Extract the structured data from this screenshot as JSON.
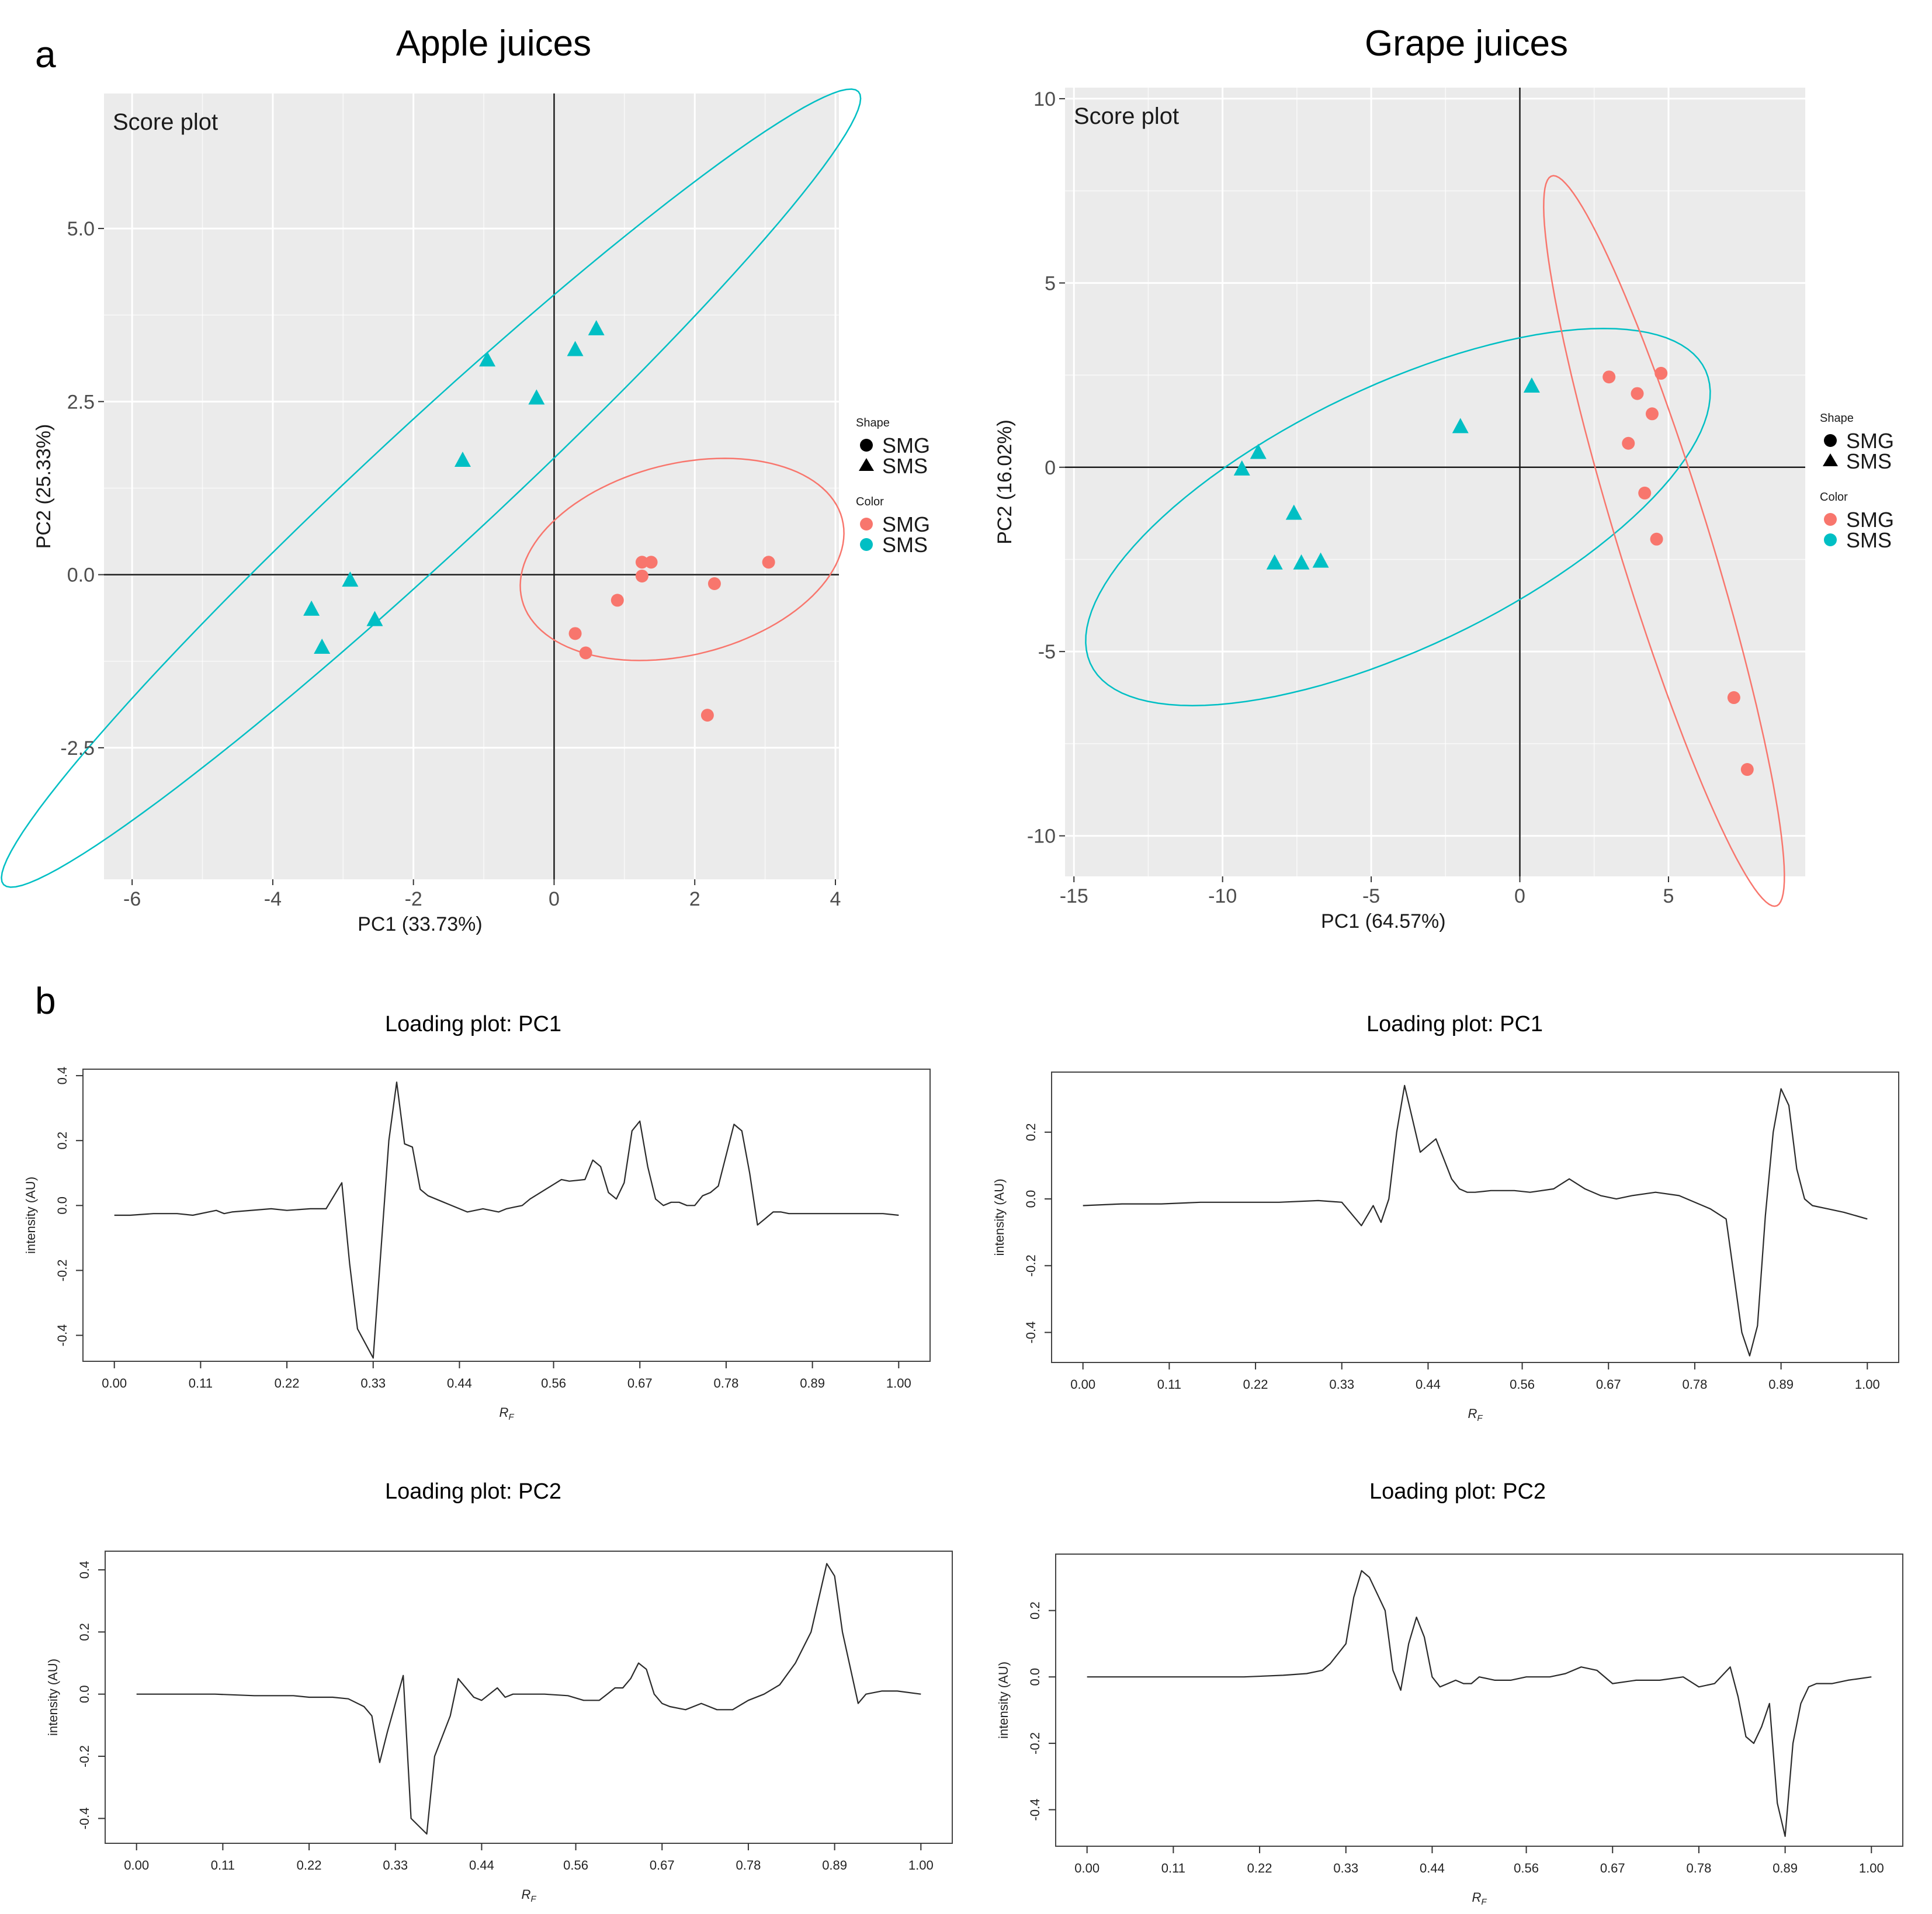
{
  "figure": {
    "panel_a_label": "a",
    "panel_b_label": "b",
    "legend": {
      "shape_title": "Shape",
      "color_title": "Color",
      "groups": [
        "SMG",
        "SMS"
      ],
      "colors": {
        "SMG": "#F8766D",
        "SMS": "#00BFC4"
      }
    }
  },
  "chart_data": [
    {
      "id": "apple-score",
      "type": "scatter",
      "title": "Apple juices",
      "annotation": "Score plot",
      "xlabel": "PC1 (33.73%)",
      "ylabel": "PC2 (25.33%)",
      "xlim": [
        -6.4,
        4.05
      ],
      "ylim": [
        -4.4,
        6.95
      ],
      "xticks": [
        -6,
        -4,
        -2,
        0,
        2,
        4
      ],
      "xtick_labels": [
        "-6",
        "-4",
        "-2",
        "0",
        "2",
        "4"
      ],
      "yticks": [
        -2.5,
        0,
        2.5,
        5
      ],
      "ytick_labels": [
        "-2.5",
        "0.0",
        "2.5",
        "5.0"
      ],
      "series": [
        {
          "name": "SMS",
          "shape": "triangle",
          "color": "#00BFC4",
          "points": [
            [
              0.6,
              3.55
            ],
            [
              0.3,
              3.25
            ],
            [
              -0.95,
              3.1
            ],
            [
              -0.25,
              2.55
            ],
            [
              -1.3,
              1.65
            ],
            [
              -2.9,
              -0.08
            ],
            [
              -3.45,
              -0.5
            ],
            [
              -2.55,
              -0.65
            ],
            [
              -3.3,
              -1.05
            ]
          ]
        },
        {
          "name": "SMG",
          "shape": "circle",
          "color": "#F8766D",
          "points": [
            [
              1.25,
              0.18
            ],
            [
              1.38,
              0.18
            ],
            [
              3.05,
              0.18
            ],
            [
              1.25,
              -0.02
            ],
            [
              2.28,
              -0.13
            ],
            [
              0.9,
              -0.37
            ],
            [
              0.3,
              -0.85
            ],
            [
              0.45,
              -1.13
            ],
            [
              2.18,
              -2.03
            ]
          ]
        }
      ],
      "ellipses": [
        {
          "group": "SMS",
          "center": [
            -1.75,
            1.25
          ],
          "semi_axes": [
            8.35,
            0.9
          ],
          "rotation_deg": 43.3
        },
        {
          "group": "SMG",
          "center": [
            1.82,
            0.22
          ],
          "semi_axes": [
            2.35,
            1.38
          ],
          "rotation_deg": 14.5
        }
      ]
    },
    {
      "id": "grape-score",
      "type": "scatter",
      "title": "Grape juices",
      "annotation": "Score plot",
      "xlabel": "PC1 (64.57%)",
      "ylabel": "PC2 (16.02%)",
      "xlim": [
        -15.3,
        9.6
      ],
      "ylim": [
        -11.1,
        10.3
      ],
      "xticks": [
        -15,
        -10,
        -5,
        0,
        5
      ],
      "xtick_labels": [
        "-15",
        "-10",
        "-5",
        "0",
        "5"
      ],
      "yticks": [
        -10,
        -5,
        0,
        5,
        10
      ],
      "ytick_labels": [
        "-10",
        "-5",
        "0",
        "5",
        "10"
      ],
      "series": [
        {
          "name": "SMS",
          "shape": "triangle",
          "color": "#00BFC4",
          "points": [
            [
              0.4,
              2.2
            ],
            [
              -2.0,
              1.1
            ],
            [
              -8.8,
              0.4
            ],
            [
              -9.35,
              -0.05
            ],
            [
              -7.6,
              -1.25
            ],
            [
              -8.25,
              -2.6
            ],
            [
              -7.35,
              -2.6
            ],
            [
              -6.7,
              -2.55
            ]
          ]
        },
        {
          "name": "SMG",
          "shape": "circle",
          "color": "#F8766D",
          "points": [
            [
              4.75,
              2.55
            ],
            [
              3.0,
              2.45
            ],
            [
              3.95,
              2.0
            ],
            [
              4.45,
              1.45
            ],
            [
              3.65,
              0.65
            ],
            [
              4.2,
              -0.7
            ],
            [
              4.6,
              -1.95
            ],
            [
              7.2,
              -6.25
            ],
            [
              7.65,
              -8.2
            ]
          ]
        }
      ],
      "ellipses": [
        {
          "group": "SMS",
          "center": [
            -4.1,
            -1.35
          ],
          "semi_axes": [
            11.1,
            3.65
          ],
          "rotation_deg": 20
        },
        {
          "group": "SMG",
          "center": [
            4.85,
            -2.0
          ],
          "semi_axes": [
            10.6,
            1.5
          ],
          "rotation_deg": -69
        }
      ]
    },
    {
      "id": "apple-pc1",
      "type": "line",
      "title": "Loading plot: PC1",
      "xlabel": "RF",
      "ylabel": "intensity (AU)",
      "xlim": [
        -0.04,
        1.04
      ],
      "ylim": [
        -0.48,
        0.42
      ],
      "xticks": [
        0.0,
        0.11,
        0.22,
        0.33,
        0.44,
        0.56,
        0.67,
        0.78,
        0.89,
        1.0
      ],
      "xtick_labels": [
        "0.00",
        "0.11",
        "0.22",
        "0.33",
        "0.44",
        "0.56",
        "0.67",
        "0.78",
        "0.89",
        "1.00"
      ],
      "yticks": [
        -0.4,
        -0.2,
        0.0,
        0.2,
        0.4
      ],
      "ytick_labels": [
        "-0.4",
        "-0.2",
        "0.0",
        "0.2",
        "0.4"
      ],
      "x": [
        0.0,
        0.02,
        0.05,
        0.08,
        0.1,
        0.13,
        0.14,
        0.15,
        0.2,
        0.22,
        0.25,
        0.27,
        0.29,
        0.3,
        0.31,
        0.33,
        0.35,
        0.36,
        0.37,
        0.38,
        0.39,
        0.4,
        0.42,
        0.45,
        0.47,
        0.49,
        0.5,
        0.51,
        0.52,
        0.53,
        0.55,
        0.57,
        0.58,
        0.6,
        0.61,
        0.62,
        0.63,
        0.64,
        0.65,
        0.66,
        0.67,
        0.68,
        0.69,
        0.7,
        0.71,
        0.72,
        0.73,
        0.74,
        0.75,
        0.76,
        0.77,
        0.79,
        0.8,
        0.81,
        0.82,
        0.83,
        0.84,
        0.85,
        0.86,
        0.87,
        0.88,
        0.89,
        0.9,
        0.92,
        0.93,
        0.95,
        0.96,
        0.98,
        1.0
      ],
      "y": [
        -0.03,
        -0.03,
        -0.025,
        -0.025,
        -0.03,
        -0.015,
        -0.025,
        -0.02,
        -0.01,
        -0.015,
        -0.01,
        -0.01,
        0.07,
        -0.18,
        -0.38,
        -0.47,
        0.2,
        0.38,
        0.19,
        0.18,
        0.05,
        0.03,
        0.01,
        -0.02,
        -0.01,
        -0.02,
        -0.01,
        -0.005,
        0.0,
        0.02,
        0.05,
        0.08,
        0.075,
        0.08,
        0.14,
        0.12,
        0.04,
        0.02,
        0.07,
        0.23,
        0.26,
        0.12,
        0.02,
        0.0,
        0.01,
        0.01,
        0.0,
        0.0,
        0.03,
        0.04,
        0.06,
        0.25,
        0.23,
        0.1,
        -0.06,
        -0.04,
        -0.02,
        -0.02,
        -0.025,
        -0.025,
        -0.025,
        -0.025,
        -0.025,
        -0.025,
        -0.025,
        -0.025,
        -0.025,
        -0.025,
        -0.03
      ]
    },
    {
      "id": "grape-pc1",
      "type": "line",
      "title": "Loading plot: PC1",
      "xlabel": "RF",
      "ylabel": "intensity (AU)",
      "xlim": [
        -0.04,
        1.04
      ],
      "ylim": [
        -0.49,
        0.38
      ],
      "xticks": [
        0.0,
        0.11,
        0.22,
        0.33,
        0.44,
        0.56,
        0.67,
        0.78,
        0.89,
        1.0
      ],
      "xtick_labels": [
        "0.00",
        "0.11",
        "0.22",
        "0.33",
        "0.44",
        "0.56",
        "0.67",
        "0.78",
        "0.89",
        "1.00"
      ],
      "yticks": [
        -0.4,
        -0.2,
        0.0,
        0.2
      ],
      "ytick_labels": [
        "-0.4",
        "-0.2",
        "0.0",
        "0.2"
      ],
      "x": [
        0.0,
        0.05,
        0.1,
        0.15,
        0.2,
        0.25,
        0.3,
        0.33,
        0.355,
        0.37,
        0.38,
        0.39,
        0.4,
        0.41,
        0.42,
        0.43,
        0.44,
        0.45,
        0.46,
        0.47,
        0.48,
        0.49,
        0.5,
        0.52,
        0.55,
        0.57,
        0.6,
        0.62,
        0.64,
        0.66,
        0.68,
        0.7,
        0.73,
        0.76,
        0.78,
        0.8,
        0.82,
        0.84,
        0.85,
        0.86,
        0.87,
        0.88,
        0.89,
        0.9,
        0.91,
        0.92,
        0.93,
        0.95,
        0.97,
        1.0
      ],
      "y": [
        -0.02,
        -0.015,
        -0.015,
        -0.01,
        -0.01,
        -0.01,
        -0.005,
        -0.01,
        -0.08,
        -0.02,
        -0.07,
        0.0,
        0.2,
        0.34,
        0.24,
        0.14,
        0.16,
        0.18,
        0.12,
        0.06,
        0.03,
        0.02,
        0.02,
        0.025,
        0.025,
        0.02,
        0.03,
        0.06,
        0.03,
        0.01,
        0.0,
        0.01,
        0.02,
        0.01,
        -0.01,
        -0.03,
        -0.06,
        -0.4,
        -0.47,
        -0.38,
        -0.05,
        0.2,
        0.33,
        0.28,
        0.09,
        0.0,
        -0.02,
        -0.03,
        -0.04,
        -0.06
      ]
    },
    {
      "id": "apple-pc2",
      "type": "line",
      "title": "Loading plot: PC2",
      "xlabel": "RF",
      "ylabel": "intensity (AU)",
      "xlim": [
        -0.04,
        1.04
      ],
      "ylim": [
        -0.48,
        0.46
      ],
      "xticks": [
        0.0,
        0.11,
        0.22,
        0.33,
        0.44,
        0.56,
        0.67,
        0.78,
        0.89,
        1.0
      ],
      "xtick_labels": [
        "0.00",
        "0.11",
        "0.22",
        "0.33",
        "0.44",
        "0.56",
        "0.67",
        "0.78",
        "0.89",
        "1.00"
      ],
      "yticks": [
        -0.4,
        -0.2,
        0.0,
        0.2,
        0.4
      ],
      "ytick_labels": [
        "-0.4",
        "-0.2",
        "0.0",
        "0.2",
        "0.4"
      ],
      "x": [
        0.0,
        0.05,
        0.1,
        0.15,
        0.2,
        0.22,
        0.25,
        0.27,
        0.29,
        0.3,
        0.31,
        0.32,
        0.34,
        0.35,
        0.37,
        0.38,
        0.4,
        0.41,
        0.42,
        0.43,
        0.44,
        0.46,
        0.47,
        0.48,
        0.5,
        0.52,
        0.55,
        0.57,
        0.59,
        0.6,
        0.61,
        0.62,
        0.63,
        0.64,
        0.65,
        0.66,
        0.67,
        0.68,
        0.7,
        0.72,
        0.74,
        0.76,
        0.78,
        0.8,
        0.82,
        0.84,
        0.86,
        0.88,
        0.89,
        0.9,
        0.92,
        0.93,
        0.95,
        0.97,
        1.0
      ],
      "y": [
        0.0,
        0.0,
        0.0,
        -0.005,
        -0.005,
        -0.01,
        -0.01,
        -0.015,
        -0.04,
        -0.07,
        -0.22,
        -0.12,
        0.06,
        -0.4,
        -0.45,
        -0.2,
        -0.07,
        0.05,
        0.02,
        -0.01,
        -0.02,
        0.02,
        -0.01,
        0.0,
        0.0,
        0.0,
        -0.005,
        -0.02,
        -0.02,
        0.0,
        0.02,
        0.02,
        0.05,
        0.1,
        0.08,
        0.0,
        -0.03,
        -0.04,
        -0.05,
        -0.03,
        -0.05,
        -0.05,
        -0.02,
        0.0,
        0.03,
        0.1,
        0.2,
        0.42,
        0.38,
        0.2,
        -0.03,
        0.0,
        0.01,
        0.01,
        0.0
      ]
    },
    {
      "id": "grape-pc2",
      "type": "line",
      "title": "Loading plot: PC2",
      "xlabel": "RF",
      "ylabel": "intensity (AU)",
      "xlim": [
        -0.04,
        1.04
      ],
      "ylim": [
        -0.51,
        0.37
      ],
      "xticks": [
        0.0,
        0.11,
        0.22,
        0.33,
        0.44,
        0.56,
        0.67,
        0.78,
        0.89,
        1.0
      ],
      "xtick_labels": [
        "0.00",
        "0.11",
        "0.22",
        "0.33",
        "0.44",
        "0.56",
        "0.67",
        "0.78",
        "0.89",
        "1.00"
      ],
      "yticks": [
        -0.4,
        -0.2,
        0.0,
        0.2
      ],
      "ytick_labels": [
        "-0.4",
        "-0.2",
        "0.0",
        "0.2"
      ],
      "x": [
        0.0,
        0.05,
        0.1,
        0.15,
        0.2,
        0.25,
        0.28,
        0.3,
        0.31,
        0.33,
        0.34,
        0.35,
        0.36,
        0.37,
        0.38,
        0.39,
        0.4,
        0.41,
        0.42,
        0.43,
        0.44,
        0.45,
        0.46,
        0.47,
        0.48,
        0.49,
        0.5,
        0.52,
        0.54,
        0.56,
        0.59,
        0.61,
        0.63,
        0.65,
        0.67,
        0.7,
        0.73,
        0.76,
        0.78,
        0.8,
        0.82,
        0.83,
        0.84,
        0.85,
        0.86,
        0.87,
        0.88,
        0.89,
        0.9,
        0.91,
        0.92,
        0.93,
        0.95,
        0.97,
        1.0
      ],
      "y": [
        0.0,
        0.0,
        0.0,
        0.0,
        0.0,
        0.005,
        0.01,
        0.02,
        0.04,
        0.1,
        0.24,
        0.32,
        0.3,
        0.25,
        0.2,
        0.02,
        -0.04,
        0.1,
        0.18,
        0.12,
        0.0,
        -0.03,
        -0.02,
        -0.01,
        -0.02,
        -0.02,
        0.0,
        -0.01,
        -0.01,
        0.0,
        0.0,
        0.01,
        0.03,
        0.02,
        -0.02,
        -0.01,
        -0.01,
        0.0,
        -0.03,
        -0.02,
        0.03,
        -0.06,
        -0.18,
        -0.2,
        -0.15,
        -0.08,
        -0.38,
        -0.48,
        -0.2,
        -0.08,
        -0.03,
        -0.02,
        -0.02,
        -0.01,
        0.0
      ]
    }
  ]
}
